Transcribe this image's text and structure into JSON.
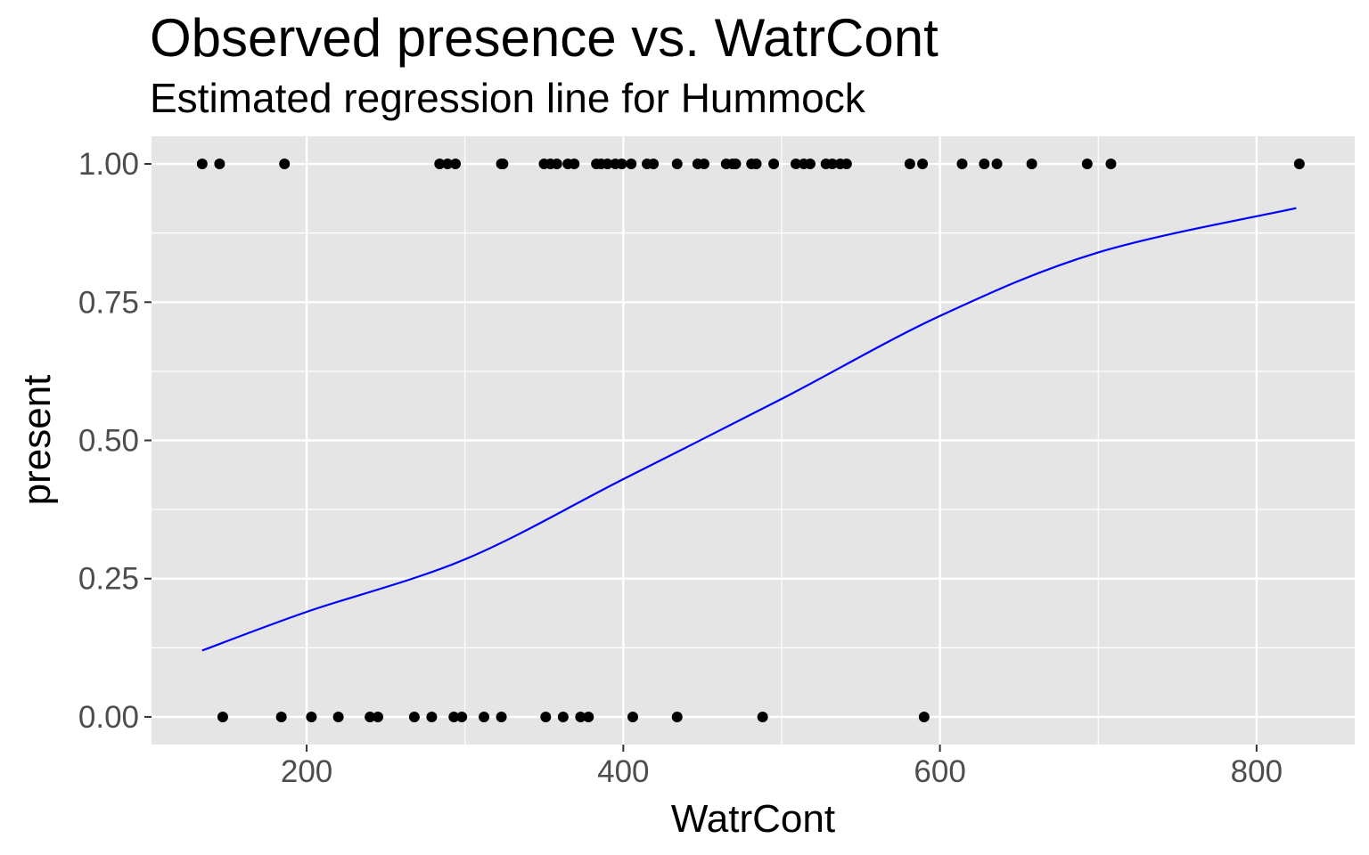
{
  "chart_data": {
    "type": "scatter",
    "title": "Observed presence vs. WatrCont",
    "subtitle": "Estimated regression line for Hummock",
    "xlabel": "WatrCont",
    "ylabel": "present",
    "xlim": [
      102,
      862
    ],
    "ylim": [
      -0.05,
      1.05
    ],
    "x_ticks": [
      200,
      400,
      600,
      800
    ],
    "x_tick_labels": [
      "200",
      "400",
      "600",
      "800"
    ],
    "y_ticks": [
      0,
      0.25,
      0.5,
      0.75,
      1
    ],
    "y_tick_labels": [
      "0.00",
      "0.25",
      "0.50",
      "0.75",
      "1.00"
    ],
    "grid": true,
    "legend": "none",
    "colors": {
      "panel": "#e5e5e5",
      "grid": "#ffffff",
      "points": "#000000",
      "line": "#0000ff"
    },
    "series": [
      {
        "type": "scatter",
        "x": [
          134,
          145,
          186,
          284,
          289,
          294,
          323,
          324,
          350,
          354,
          358,
          365,
          369,
          383,
          386,
          390,
          395,
          399,
          405,
          415,
          419,
          434,
          447,
          451,
          465,
          469,
          471,
          481,
          484,
          495,
          509,
          514,
          518,
          528,
          532,
          537,
          541,
          581,
          589,
          614,
          628,
          636,
          658,
          693,
          708,
          827,
          147,
          184,
          203,
          220,
          240,
          245,
          268,
          279,
          293,
          298,
          312,
          323,
          351,
          362,
          373,
          378,
          406,
          434,
          488,
          590
        ],
        "y": [
          1,
          1,
          1,
          1,
          1,
          1,
          1,
          1,
          1,
          1,
          1,
          1,
          1,
          1,
          1,
          1,
          1,
          1,
          1,
          1,
          1,
          1,
          1,
          1,
          1,
          1,
          1,
          1,
          1,
          1,
          1,
          1,
          1,
          1,
          1,
          1,
          1,
          1,
          1,
          1,
          1,
          1,
          1,
          1,
          1,
          1,
          0,
          0,
          0,
          0,
          0,
          0,
          0,
          0,
          0,
          0,
          0,
          0,
          0,
          0,
          0,
          0,
          0,
          0,
          0,
          0
        ]
      },
      {
        "type": "line",
        "x": [
          134,
          200,
          300,
          400,
          500,
          600,
          700,
          825
        ],
        "y": [
          0.12,
          0.19,
          0.285,
          0.43,
          0.575,
          0.725,
          0.84,
          0.92
        ]
      }
    ]
  }
}
